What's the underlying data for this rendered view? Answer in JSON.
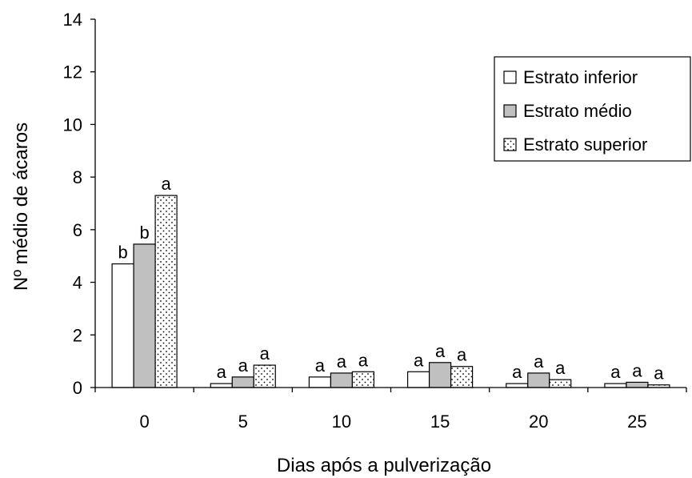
{
  "chart_data": {
    "type": "bar",
    "title": "",
    "xlabel": "Dias após a pulverização",
    "ylabel": "Nº médio de ácaros",
    "ylim": [
      0,
      14
    ],
    "yticks": [
      0,
      2,
      4,
      6,
      8,
      10,
      12,
      14
    ],
    "grid": false,
    "legend_position": "top-right",
    "categories": [
      "0",
      "5",
      "10",
      "15",
      "20",
      "25"
    ],
    "series": [
      {
        "name": "Estrato inferior",
        "fill": "#ffffff",
        "pattern": "none",
        "values": [
          4.7,
          0.15,
          0.4,
          0.6,
          0.15,
          0.15
        ],
        "labels": [
          "b",
          "a",
          "a",
          "a",
          "a",
          "a"
        ]
      },
      {
        "name": "Estrato médio",
        "fill": "#c0c0c0",
        "pattern": "none",
        "values": [
          5.45,
          0.4,
          0.55,
          0.95,
          0.55,
          0.2
        ],
        "labels": [
          "b",
          "a",
          "a",
          "a",
          "a",
          "a"
        ]
      },
      {
        "name": "Estrato superior",
        "fill": "#ffffff",
        "pattern": "dots",
        "values": [
          7.3,
          0.85,
          0.6,
          0.8,
          0.3,
          0.1
        ],
        "labels": [
          "a",
          "a",
          "a",
          "a",
          "a",
          "a"
        ]
      }
    ]
  }
}
